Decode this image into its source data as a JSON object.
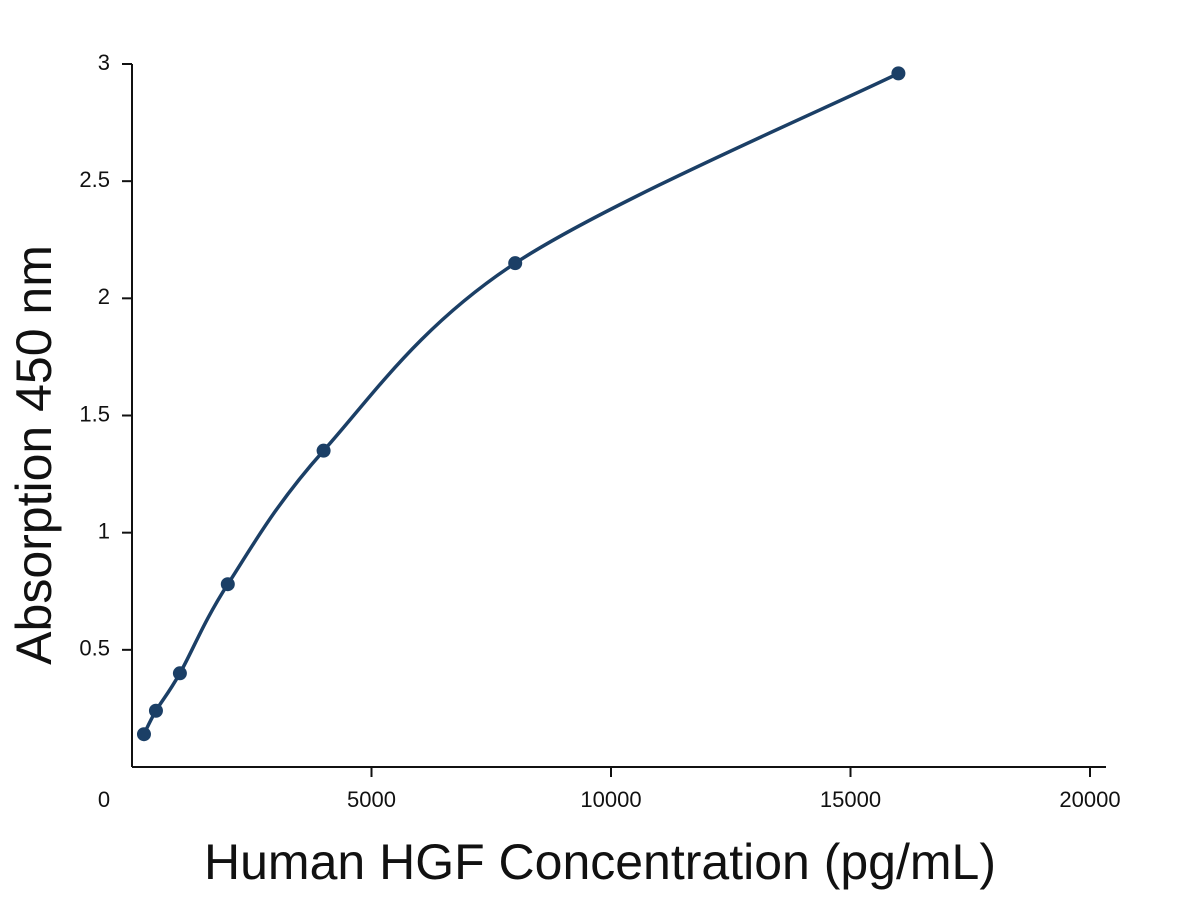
{
  "chart_data": {
    "type": "scatter",
    "x_label": "Human HGF Concentration (pg/mL)",
    "y_label": "Absorption 450 nm",
    "series": [
      {
        "x": [
          250,
          500,
          1000,
          2000,
          4000,
          8000,
          16000
        ],
        "values": [
          0.14,
          0.24,
          0.4,
          0.78,
          1.35,
          2.15,
          2.96
        ],
        "color": "#1b3f66"
      }
    ],
    "xlim": [
      0,
      20000
    ],
    "xticks": [
      0,
      5000,
      10000,
      15000,
      20000
    ],
    "ylim": [
      0,
      3
    ],
    "yticks": [
      0.5,
      1,
      1.5,
      2,
      2.5,
      3
    ],
    "grid": false
  }
}
